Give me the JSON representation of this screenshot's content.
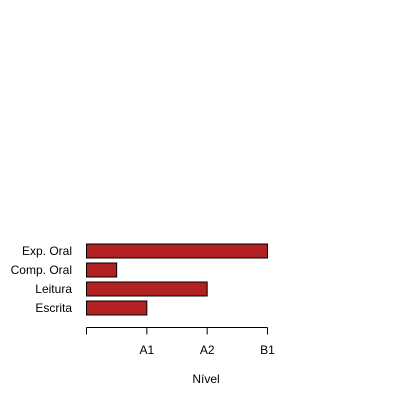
{
  "chart_data": {
    "type": "bar",
    "orientation": "horizontal",
    "categories": [
      "Exp. Oral",
      "Comp. Oral",
      "Leitura",
      "Escrita"
    ],
    "values": [
      3.0,
      0.5,
      2.0,
      1.0
    ],
    "xlabel": "Nível",
    "xlim": [
      0,
      3
    ],
    "xticks": [
      {
        "value": 0,
        "label": ""
      },
      {
        "value": 1,
        "label": "A1"
      },
      {
        "value": 2,
        "label": "A2"
      },
      {
        "value": 3,
        "label": "B1"
      }
    ],
    "bar_color": "#B22222",
    "grid": false,
    "legend": "none"
  }
}
